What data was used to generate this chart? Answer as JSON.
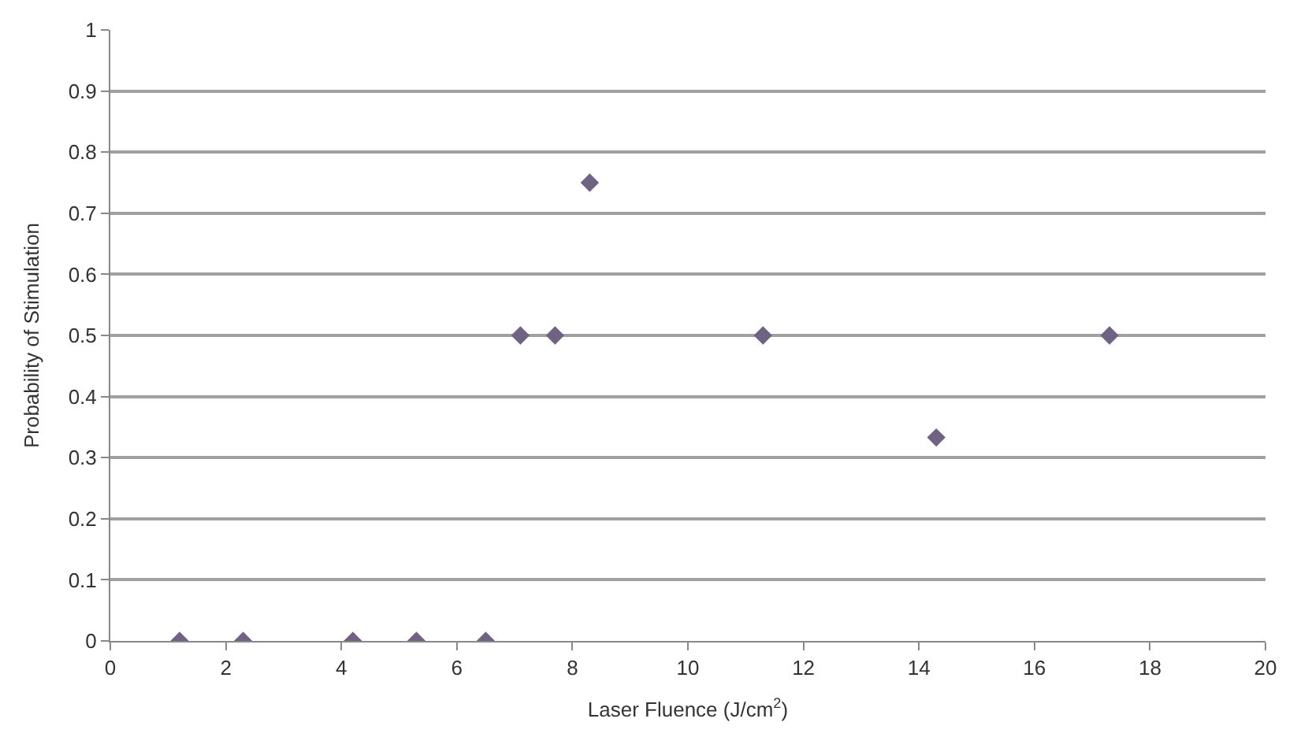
{
  "chart_data": {
    "type": "scatter",
    "xlabel": "Laser Fluence (J/cm$^{2}$)",
    "ylabel": "Probability of Stimulation",
    "x": [
      1.2,
      2.3,
      4.2,
      5.3,
      6.5,
      7.1,
      7.7,
      8.3,
      11.3,
      14.3,
      17.3
    ],
    "values": [
      0,
      0,
      0,
      0,
      0,
      0.5,
      0.5,
      0.75,
      0.5,
      0.333,
      0.5
    ],
    "color": "#6f6283",
    "marker": "diamond",
    "grid": "y",
    "xlim": [
      0,
      20
    ],
    "xticks": [
      0,
      2,
      4,
      6,
      8,
      10,
      12,
      14,
      16,
      18,
      20
    ],
    "ylim": [
      0,
      1
    ],
    "yticks": [
      0,
      0.1,
      0.2,
      0.3,
      0.4,
      0.5,
      0.6,
      0.7,
      0.8,
      0.9,
      1
    ]
  }
}
